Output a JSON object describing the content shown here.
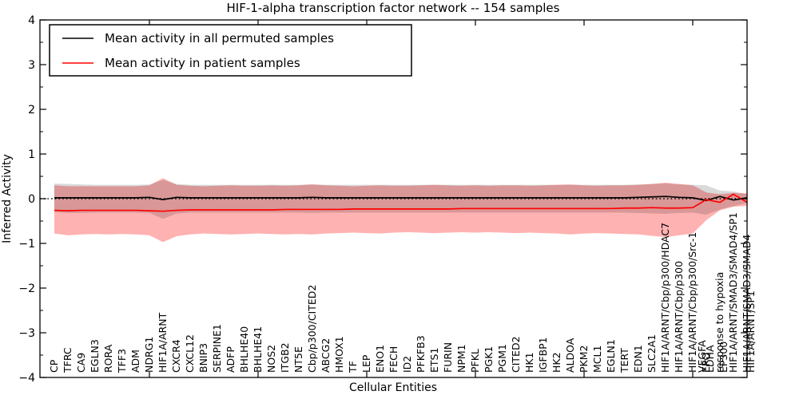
{
  "chart_data": {
    "type": "line",
    "title": "HIF-1-alpha transcription factor network -- 154 samples",
    "xlabel": "Cellular Entities",
    "ylabel": "Inferred Activity",
    "ylim": [
      -4,
      4
    ],
    "yticks": [
      -4,
      -3,
      -2,
      -1,
      0,
      1,
      2,
      3,
      4
    ],
    "ytick_labels": [
      "−4",
      "−3",
      "−2",
      "−1",
      "0",
      "1",
      "2",
      "3",
      "4"
    ],
    "grid": false,
    "legend_position": "upper left",
    "zero_line": {
      "y": 0,
      "style": "dotted",
      "color": "#000000"
    },
    "x_spine_tick_indices": [
      7,
      15,
      23,
      31,
      39,
      47
    ],
    "categories": [
      [
        "CP"
      ],
      [
        "TFRC"
      ],
      [
        "CA9"
      ],
      [
        "EGLN3"
      ],
      [
        "RORA"
      ],
      [
        "TFF3"
      ],
      [
        "ADM"
      ],
      [
        "NDRG1"
      ],
      [
        "HIF1A/ARNT"
      ],
      [
        "CXCR4"
      ],
      [
        "CXCL12"
      ],
      [
        "BNIP3"
      ],
      [
        "SERPINE1"
      ],
      [
        "ADFP"
      ],
      [
        "BHLHE40"
      ],
      [
        "BHLHE41"
      ],
      [
        "NOS2"
      ],
      [
        "ITGB2"
      ],
      [
        "NT5E"
      ],
      [
        "Cbp/p300/CITED2"
      ],
      [
        "ABCG2"
      ],
      [
        "HMOX1"
      ],
      [
        "TF"
      ],
      [
        "LEP"
      ],
      [
        "ENO1"
      ],
      [
        "FECH"
      ],
      [
        "ID2"
      ],
      [
        "PFKFB3"
      ],
      [
        "ETS1"
      ],
      [
        "FURIN"
      ],
      [
        "NPM1"
      ],
      [
        "PFKL"
      ],
      [
        "PGK1"
      ],
      [
        "PGM1"
      ],
      [
        "CITED2"
      ],
      [
        "HK1"
      ],
      [
        "IGFBP1"
      ],
      [
        "HK2"
      ],
      [
        "ALDOA"
      ],
      [
        "PKM2"
      ],
      [
        "MCL1"
      ],
      [
        "EGLN1"
      ],
      [
        "TERT"
      ],
      [
        "EDN1"
      ],
      [
        "SLC2A1"
      ],
      [
        "HIF1A/ARNT/Cbp/p300/HDAC7"
      ],
      [
        "HIF1A/ARNT/Cbp/p300"
      ],
      [
        "HIF1A/ARNT/Cbp/p300/Src-1"
      ],
      [
        "EPO",
        "LDHA",
        "VEGFA"
      ],
      [
        "response to hypoxia",
        "EP300"
      ],
      [
        "HIF1A/ARNT/SMAD3/SMAD4/SP1"
      ],
      [
        "HIF1A/ARNT/SMAD3/SMAD4",
        "HIF1A/ARNT/SP1"
      ]
    ],
    "series": [
      {
        "name": "Mean activity in all permuted samples",
        "color": "#000000",
        "band_fill": "#000000",
        "band_opacity": 0.15,
        "values": [
          0.02,
          0.02,
          0.02,
          0.02,
          0.02,
          0.02,
          0.02,
          0.03,
          -0.02,
          0.03,
          0.02,
          0.02,
          0.02,
          0.02,
          0.02,
          0.02,
          0.02,
          0.02,
          0.02,
          0.03,
          0.02,
          0.02,
          0.02,
          0.02,
          0.02,
          0.02,
          0.02,
          0.02,
          0.02,
          0.02,
          0.02,
          0.02,
          0.02,
          0.02,
          0.02,
          0.02,
          0.02,
          0.02,
          0.02,
          0.02,
          0.02,
          0.02,
          0.02,
          0.03,
          0.04,
          0.05,
          0.03,
          0.02,
          -0.04,
          0.05,
          -0.03,
          0.02
        ],
        "band_upper": [
          0.34,
          0.33,
          0.32,
          0.31,
          0.31,
          0.31,
          0.31,
          0.32,
          0.42,
          0.33,
          0.31,
          0.31,
          0.31,
          0.31,
          0.31,
          0.31,
          0.31,
          0.31,
          0.31,
          0.32,
          0.31,
          0.31,
          0.31,
          0.31,
          0.31,
          0.31,
          0.31,
          0.31,
          0.31,
          0.31,
          0.31,
          0.31,
          0.31,
          0.31,
          0.31,
          0.31,
          0.31,
          0.31,
          0.31,
          0.31,
          0.31,
          0.31,
          0.31,
          0.32,
          0.33,
          0.34,
          0.32,
          0.31,
          0.3,
          0.18,
          0.16,
          0.1
        ],
        "band_lower": [
          -0.3,
          -0.32,
          -0.32,
          -0.31,
          -0.31,
          -0.31,
          -0.31,
          -0.32,
          -0.45,
          -0.33,
          -0.31,
          -0.31,
          -0.31,
          -0.31,
          -0.31,
          -0.31,
          -0.31,
          -0.31,
          -0.31,
          -0.32,
          -0.31,
          -0.31,
          -0.31,
          -0.31,
          -0.31,
          -0.31,
          -0.31,
          -0.31,
          -0.31,
          -0.31,
          -0.31,
          -0.31,
          -0.31,
          -0.31,
          -0.31,
          -0.31,
          -0.31,
          -0.31,
          -0.31,
          -0.31,
          -0.31,
          -0.31,
          -0.31,
          -0.32,
          -0.33,
          -0.34,
          -0.32,
          -0.31,
          -0.36,
          -0.24,
          -0.16,
          -0.1
        ]
      },
      {
        "name": "Mean activity in patient samples",
        "color": "#ff0000",
        "band_fill": "#ff0000",
        "band_opacity": 0.3,
        "values": [
          -0.26,
          -0.27,
          -0.26,
          -0.26,
          -0.26,
          -0.26,
          -0.26,
          -0.27,
          -0.28,
          -0.26,
          -0.25,
          -0.25,
          -0.25,
          -0.25,
          -0.25,
          -0.25,
          -0.25,
          -0.24,
          -0.24,
          -0.24,
          -0.24,
          -0.24,
          -0.23,
          -0.23,
          -0.23,
          -0.23,
          -0.23,
          -0.23,
          -0.23,
          -0.23,
          -0.22,
          -0.22,
          -0.22,
          -0.22,
          -0.22,
          -0.22,
          -0.22,
          -0.22,
          -0.22,
          -0.22,
          -0.22,
          -0.22,
          -0.21,
          -0.21,
          -0.2,
          -0.21,
          -0.21,
          -0.2,
          -0.02,
          -0.08,
          0.1,
          -0.08
        ],
        "band_upper": [
          0.3,
          0.28,
          0.28,
          0.28,
          0.28,
          0.28,
          0.28,
          0.3,
          0.46,
          0.31,
          0.29,
          0.28,
          0.29,
          0.3,
          0.29,
          0.29,
          0.3,
          0.29,
          0.3,
          0.32,
          0.3,
          0.29,
          0.28,
          0.29,
          0.3,
          0.29,
          0.29,
          0.3,
          0.31,
          0.3,
          0.29,
          0.3,
          0.29,
          0.3,
          0.3,
          0.29,
          0.3,
          0.31,
          0.32,
          0.3,
          0.29,
          0.3,
          0.3,
          0.31,
          0.33,
          0.36,
          0.33,
          0.3,
          0.14,
          0.1,
          0.13,
          0.12
        ],
        "band_lower": [
          -0.78,
          -0.82,
          -0.8,
          -0.79,
          -0.8,
          -0.79,
          -0.8,
          -0.82,
          -0.97,
          -0.84,
          -0.8,
          -0.78,
          -0.79,
          -0.8,
          -0.79,
          -0.78,
          -0.79,
          -0.8,
          -0.79,
          -0.8,
          -0.78,
          -0.77,
          -0.76,
          -0.77,
          -0.78,
          -0.76,
          -0.75,
          -0.76,
          -0.77,
          -0.76,
          -0.75,
          -0.76,
          -0.75,
          -0.76,
          -0.77,
          -0.76,
          -0.77,
          -0.78,
          -0.8,
          -0.78,
          -0.77,
          -0.78,
          -0.79,
          -0.8,
          -0.83,
          -0.86,
          -0.82,
          -0.78,
          -0.48,
          -0.26,
          -0.18,
          -0.16
        ]
      }
    ]
  },
  "colors": {
    "axis": "#000000",
    "background": "#ffffff",
    "patient_line": "#ff0000",
    "permuted_line": "#000000"
  }
}
